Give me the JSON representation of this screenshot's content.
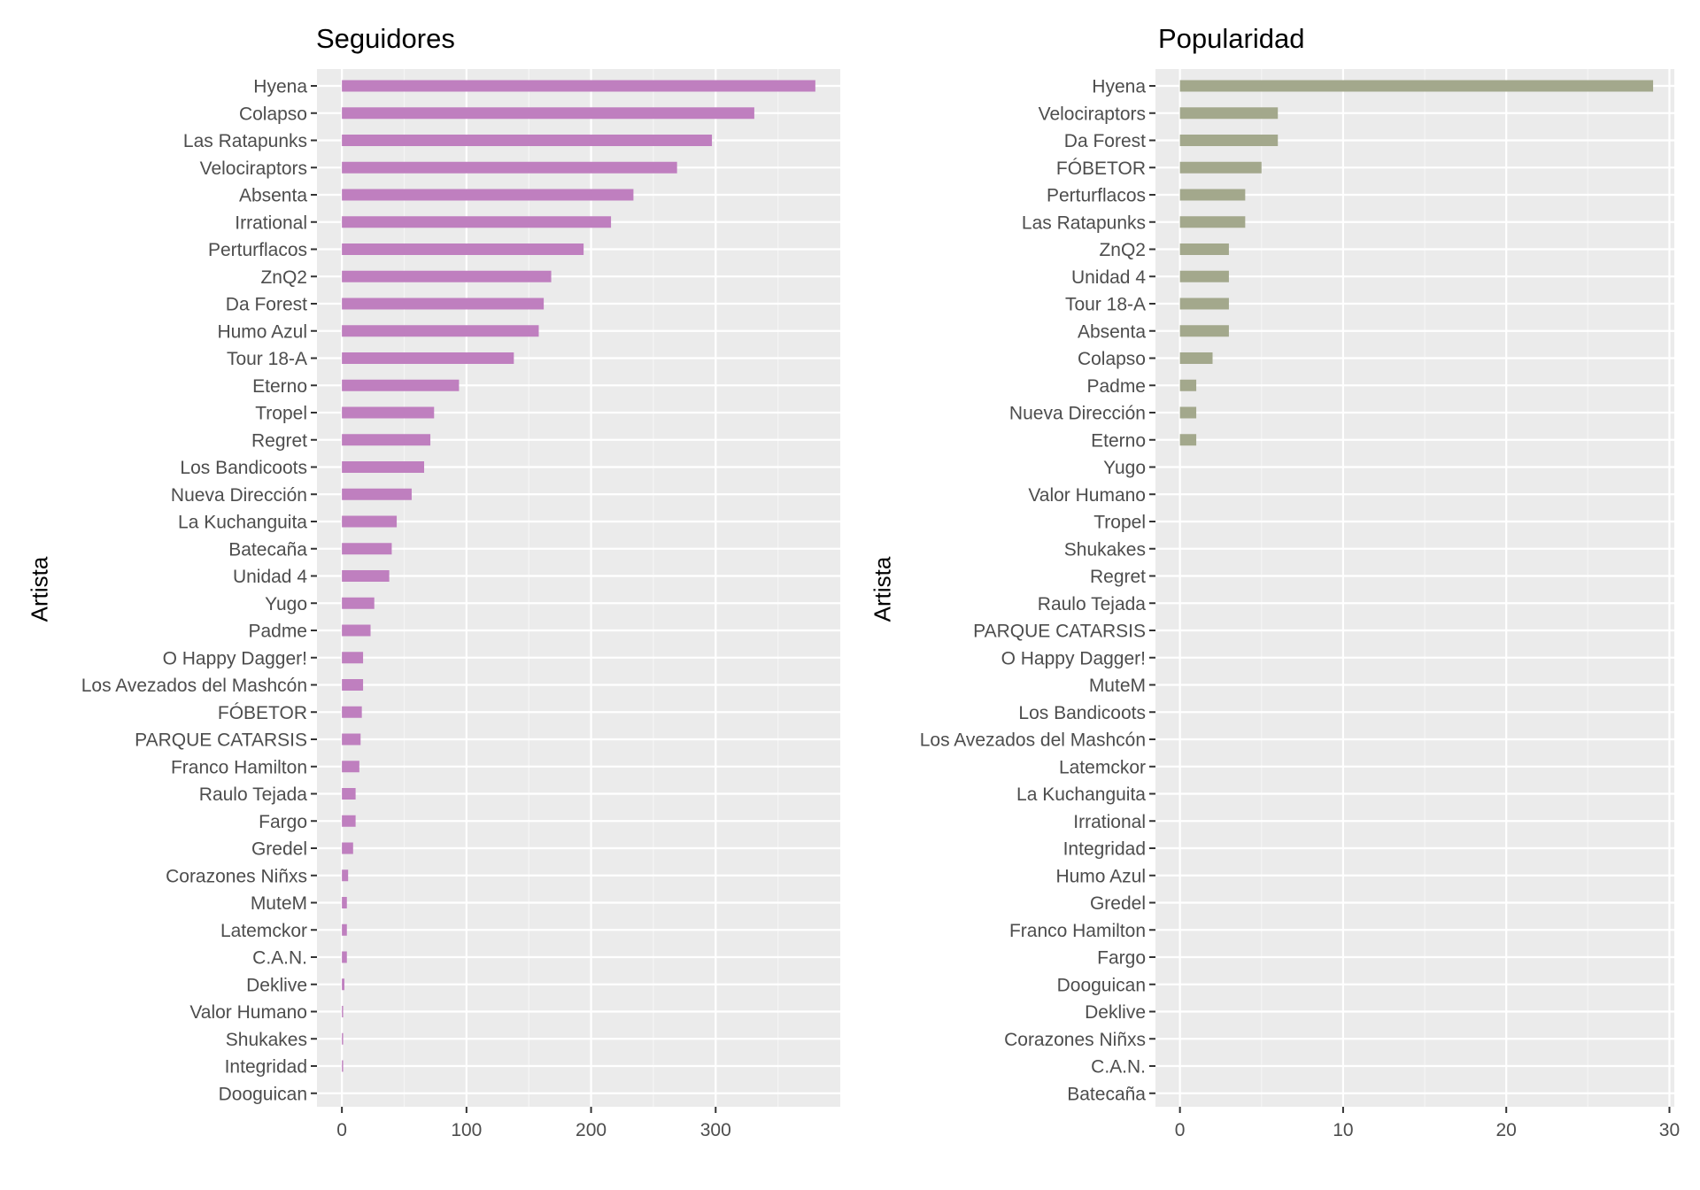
{
  "chart_data": [
    {
      "type": "bar",
      "orientation": "horizontal",
      "title": "Seguidores",
      "xlabel": "",
      "ylabel": "Artista",
      "xlim": [
        -20,
        400
      ],
      "xticks": [
        0,
        100,
        200,
        300
      ],
      "grid": true,
      "bar_color": "#BF7FBF",
      "categories": [
        "Hyena",
        "Colapso",
        "Las Ratapunks",
        "Velociraptors",
        "Absenta",
        "Irrational",
        "Perturflacos",
        "ZnQ2",
        "Da Forest",
        "Humo Azul",
        "Tour 18-A",
        "Eterno",
        "Tropel",
        "Regret",
        "Los Bandicoots",
        "Nueva Dirección",
        "La Kuchanguita",
        "Batecaña",
        "Unidad 4",
        "Yugo",
        "Padme",
        "O Happy Dagger!",
        "Los Avezados del Mashcón",
        "FÓBETOR",
        "PARQUE CATARSIS",
        "Franco Hamilton",
        "Raulo Tejada",
        "Fargo",
        "Gredel",
        "Corazones Niñxs",
        "MuteM",
        "Latemckor",
        "C.A.N.",
        "Deklive",
        "Valor Humano",
        "Shukakes",
        "Integridad",
        "Dooguican"
      ],
      "values": [
        380,
        331,
        297,
        269,
        234,
        216,
        194,
        168,
        162,
        158,
        138,
        94,
        74,
        71,
        66,
        56,
        44,
        40,
        38,
        26,
        23,
        17,
        17,
        16,
        15,
        14,
        11,
        11,
        9,
        5,
        4,
        4,
        4,
        2,
        1,
        1,
        1,
        0
      ]
    },
    {
      "type": "bar",
      "orientation": "horizontal",
      "title": "Popularidad",
      "xlabel": "",
      "ylabel": "Artista",
      "xlim": [
        -1.5,
        30.3
      ],
      "xticks": [
        0,
        10,
        20,
        30
      ],
      "grid": true,
      "bar_color": "#A3A88C",
      "categories": [
        "Hyena",
        "Velociraptors",
        "Da Forest",
        "FÓBETOR",
        "Perturflacos",
        "Las Ratapunks",
        "ZnQ2",
        "Unidad 4",
        "Tour 18-A",
        "Absenta",
        "Colapso",
        "Padme",
        "Nueva Dirección",
        "Eterno",
        "Yugo",
        "Valor Humano",
        "Tropel",
        "Shukakes",
        "Regret",
        "Raulo Tejada",
        "PARQUE CATARSIS",
        "O Happy Dagger!",
        "MuteM",
        "Los Bandicoots",
        "Los Avezados del Mashcón",
        "Latemckor",
        "La Kuchanguita",
        "Irrational",
        "Integridad",
        "Humo Azul",
        "Gredel",
        "Franco Hamilton",
        "Fargo",
        "Dooguican",
        "Deklive",
        "Corazones Niñxs",
        "C.A.N.",
        "Batecaña"
      ],
      "values": [
        29,
        6,
        6,
        5,
        4,
        4,
        3,
        3,
        3,
        3,
        2,
        1,
        1,
        1,
        0,
        0,
        0,
        0,
        0,
        0,
        0,
        0,
        0,
        0,
        0,
        0,
        0,
        0,
        0,
        0,
        0,
        0,
        0,
        0,
        0,
        0,
        0,
        0
      ]
    }
  ]
}
